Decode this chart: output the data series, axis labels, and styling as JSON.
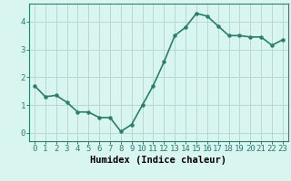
{
  "x": [
    0,
    1,
    2,
    3,
    4,
    5,
    6,
    7,
    8,
    9,
    10,
    11,
    12,
    13,
    14,
    15,
    16,
    17,
    18,
    19,
    20,
    21,
    22,
    23
  ],
  "y": [
    1.7,
    1.3,
    1.35,
    1.1,
    0.75,
    0.75,
    0.55,
    0.55,
    0.05,
    0.3,
    1.0,
    1.7,
    2.55,
    3.5,
    3.8,
    4.3,
    4.2,
    3.85,
    3.5,
    3.5,
    3.45,
    3.45,
    3.15,
    3.35
  ],
  "xlim": [
    -0.5,
    23.5
  ],
  "ylim": [
    -0.3,
    4.65
  ],
  "yticks": [
    0,
    1,
    2,
    3,
    4
  ],
  "xticks": [
    0,
    1,
    2,
    3,
    4,
    5,
    6,
    7,
    8,
    9,
    10,
    11,
    12,
    13,
    14,
    15,
    16,
    17,
    18,
    19,
    20,
    21,
    22,
    23
  ],
  "xlabel": "Humidex (Indice chaleur)",
  "line_color": "#2d7d6d",
  "marker": "o",
  "marker_size": 2.2,
  "background_color": "#d8f5f0",
  "grid_color": "#b8d8d4",
  "xlabel_fontsize": 7.5,
  "tick_fontsize": 6.5,
  "line_width": 1.2
}
